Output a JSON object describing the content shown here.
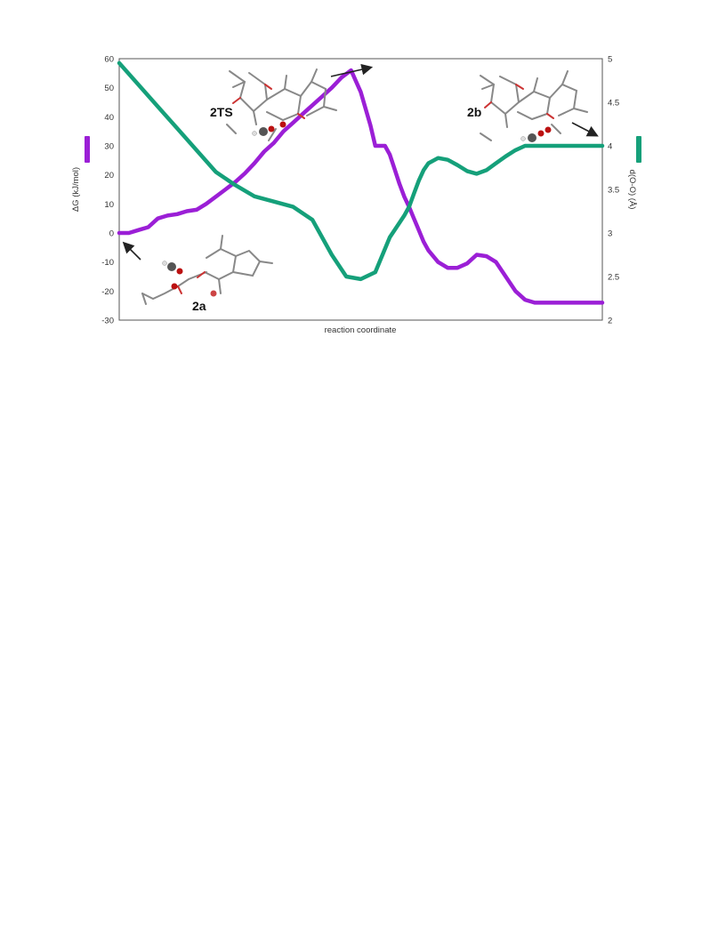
{
  "chart_data": {
    "type": "line",
    "xlabel": "reaction coordinate",
    "y_left": {
      "label": "ΔG (kJ/mol)",
      "lim": [
        -30,
        60
      ],
      "ticks": [
        "60",
        "50",
        "40",
        "30",
        "20",
        "10",
        "0",
        "-10",
        "-20",
        "-30"
      ],
      "tick_values": [
        60,
        50,
        40,
        30,
        20,
        10,
        0,
        -10,
        -20,
        -30
      ]
    },
    "y_right": {
      "label": "d(O-O) (Å)",
      "lim": [
        2,
        5
      ],
      "ticks": [
        "5",
        "4.5",
        "4",
        "3.5",
        "3",
        "2.5",
        "2"
      ],
      "tick_values": [
        5,
        4.5,
        4,
        3.5,
        3,
        2.5,
        2
      ]
    },
    "xlim": [
      0,
      100
    ],
    "grid": false,
    "legend": "none",
    "series": [
      {
        "axis": "left",
        "color": "#9b1fd6",
        "x": [
          0,
          2,
          4,
          6,
          8,
          10,
          12,
          14,
          16,
          18,
          20,
          22,
          24,
          26,
          28,
          30,
          32,
          34,
          36,
          38,
          40,
          42,
          44,
          46,
          48,
          50,
          52,
          53,
          54,
          55,
          56,
          57,
          58,
          59,
          60,
          61,
          62,
          63,
          64,
          66,
          68,
          70,
          72,
          74,
          76,
          78,
          80,
          82,
          84,
          86,
          88,
          90,
          92,
          94,
          96,
          98,
          100
        ],
        "values": [
          0,
          0,
          1,
          2,
          5,
          6,
          6.5,
          7.5,
          8,
          10,
          12.5,
          15,
          17.5,
          20.5,
          24,
          28,
          31,
          35,
          38,
          41,
          44,
          47,
          50,
          53.5,
          56,
          48.5,
          37,
          30,
          30,
          30,
          27,
          22,
          17,
          12.5,
          9,
          5,
          1,
          -3,
          -6,
          -10,
          -12,
          -12,
          -10.5,
          -7.5,
          -8,
          -10,
          -15,
          -20,
          -23,
          -24,
          -24,
          -24,
          -24,
          -24,
          -24,
          -24,
          -24
        ]
      },
      {
        "axis": "right",
        "color": "#15a07a",
        "x": [
          0,
          4,
          8,
          12,
          16,
          20,
          24,
          28,
          32,
          36,
          40,
          44,
          47,
          50,
          53,
          56,
          59,
          60,
          61,
          62,
          63,
          64,
          66,
          68,
          70,
          72,
          74,
          76,
          78,
          80,
          82,
          84,
          86,
          88,
          90,
          92,
          94,
          96,
          98,
          100
        ],
        "values": [
          4.95,
          4.7,
          4.45,
          4.2,
          3.95,
          3.7,
          3.55,
          3.42,
          3.36,
          3.3,
          3.15,
          2.75,
          2.5,
          2.47,
          2.55,
          2.95,
          3.2,
          3.3,
          3.45,
          3.6,
          3.72,
          3.8,
          3.86,
          3.84,
          3.78,
          3.71,
          3.68,
          3.72,
          3.8,
          3.88,
          3.95,
          4.0,
          4.0,
          4.0,
          4.0,
          4.0,
          4.0,
          4.0,
          4.0,
          4.0
        ]
      }
    ],
    "annotations": [
      "2TS",
      "2b",
      "2a"
    ]
  }
}
